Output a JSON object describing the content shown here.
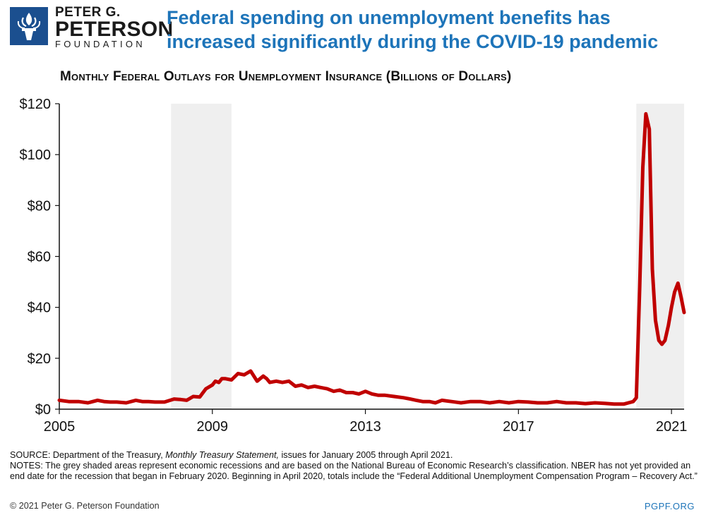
{
  "logo": {
    "line1": "PETER G.",
    "line2": "PETERSON",
    "line3": "FOUNDATION",
    "icon": "torch-icon",
    "color": "#1b4f8f"
  },
  "headline": "Federal spending on unemployment benefits has increased significantly during the COVID-19 pandemic",
  "chart_data": {
    "type": "line",
    "title": "Monthly Federal Outlays for Unemployment Insurance (Billions of Dollars)",
    "xlabel": "",
    "ylabel": "",
    "xlim": [
      2005.0,
      2021.33
    ],
    "ylim": [
      0,
      120
    ],
    "x_ticks": [
      2005,
      2009,
      2013,
      2017,
      2021
    ],
    "x_tick_labels": [
      "2005",
      "2009",
      "2013",
      "2017",
      "2021"
    ],
    "y_ticks": [
      0,
      20,
      40,
      60,
      80,
      100,
      120
    ],
    "y_tick_labels": [
      "$0",
      "$20",
      "$40",
      "$60",
      "$80",
      "$100",
      "$120"
    ],
    "grid": false,
    "line_color": "#c00000",
    "recession_color": "#efefef",
    "recessions": [
      {
        "start": 2007.92,
        "end": 2009.5
      },
      {
        "start": 2020.08,
        "end": 2021.33
      }
    ],
    "series": [
      {
        "x": [
          2005.0,
          2005.25,
          2005.5,
          2005.75,
          2006.0,
          2006.17,
          2006.33,
          2006.5,
          2006.75,
          2007.0,
          2007.17,
          2007.33,
          2007.5,
          2007.75,
          2008.0,
          2008.17,
          2008.33,
          2008.5,
          2008.67,
          2008.83,
          2009.0,
          2009.08,
          2009.17,
          2009.25,
          2009.33,
          2009.5,
          2009.67,
          2009.83,
          2010.0,
          2010.17,
          2010.33,
          2010.42,
          2010.5,
          2010.67,
          2010.83,
          2011.0,
          2011.17,
          2011.33,
          2011.5,
          2011.67,
          2011.83,
          2012.0,
          2012.17,
          2012.33,
          2012.5,
          2012.67,
          2012.83,
          2013.0,
          2013.17,
          2013.33,
          2013.5,
          2013.75,
          2014.0,
          2014.17,
          2014.33,
          2014.5,
          2014.67,
          2014.83,
          2015.0,
          2015.25,
          2015.5,
          2015.75,
          2016.0,
          2016.25,
          2016.5,
          2016.75,
          2017.0,
          2017.25,
          2017.5,
          2017.75,
          2018.0,
          2018.25,
          2018.5,
          2018.75,
          2019.0,
          2019.25,
          2019.5,
          2019.75,
          2020.0,
          2020.08,
          2020.17,
          2020.25,
          2020.33,
          2020.42,
          2020.5,
          2020.58,
          2020.67,
          2020.75,
          2020.83,
          2020.92,
          2021.0,
          2021.08,
          2021.17,
          2021.25,
          2021.33
        ],
        "values": [
          3.5,
          3.0,
          3.0,
          2.5,
          3.5,
          3.0,
          2.8,
          2.8,
          2.5,
          3.5,
          3.0,
          3.0,
          2.8,
          2.8,
          4.0,
          3.8,
          3.5,
          5.0,
          4.8,
          8.0,
          9.5,
          11.0,
          10.5,
          12.0,
          12.0,
          11.5,
          14.0,
          13.5,
          15.0,
          11.0,
          13.0,
          12.0,
          10.5,
          11.0,
          10.5,
          11.0,
          9.0,
          9.5,
          8.5,
          9.0,
          8.5,
          8.0,
          7.0,
          7.5,
          6.5,
          6.5,
          6.0,
          7.0,
          6.0,
          5.5,
          5.5,
          5.0,
          4.5,
          4.0,
          3.5,
          3.0,
          3.0,
          2.5,
          3.5,
          3.0,
          2.5,
          3.0,
          3.0,
          2.5,
          3.0,
          2.5,
          3.0,
          2.8,
          2.5,
          2.5,
          3.0,
          2.5,
          2.5,
          2.2,
          2.5,
          2.3,
          2.0,
          2.0,
          3.0,
          4.5,
          48.0,
          95.0,
          116.0,
          110.0,
          55.0,
          35.0,
          27.0,
          25.5,
          27.0,
          33.0,
          40.0,
          46.0,
          49.5,
          44.0,
          38.0
        ]
      }
    ]
  },
  "source_label": "SOURCE: ",
  "source_text1": "Department of the Treasury, ",
  "source_italic": "Monthly Treasury Statement,",
  "source_text2": " issues for January 2005 through April 2021.",
  "notes_text": "NOTES: The grey shaded areas represent economic recessions and are based on the National Bureau of Economic Research’s classification. NBER has not yet provided an end date for the recession that began in February 2020. Beginning in April 2020, totals include the “Federal Additional Unemployment Compensation Program – Recovery Act.”",
  "copyright": "© 2021 Peter G. Peterson Foundation",
  "site": "PGPF.ORG"
}
